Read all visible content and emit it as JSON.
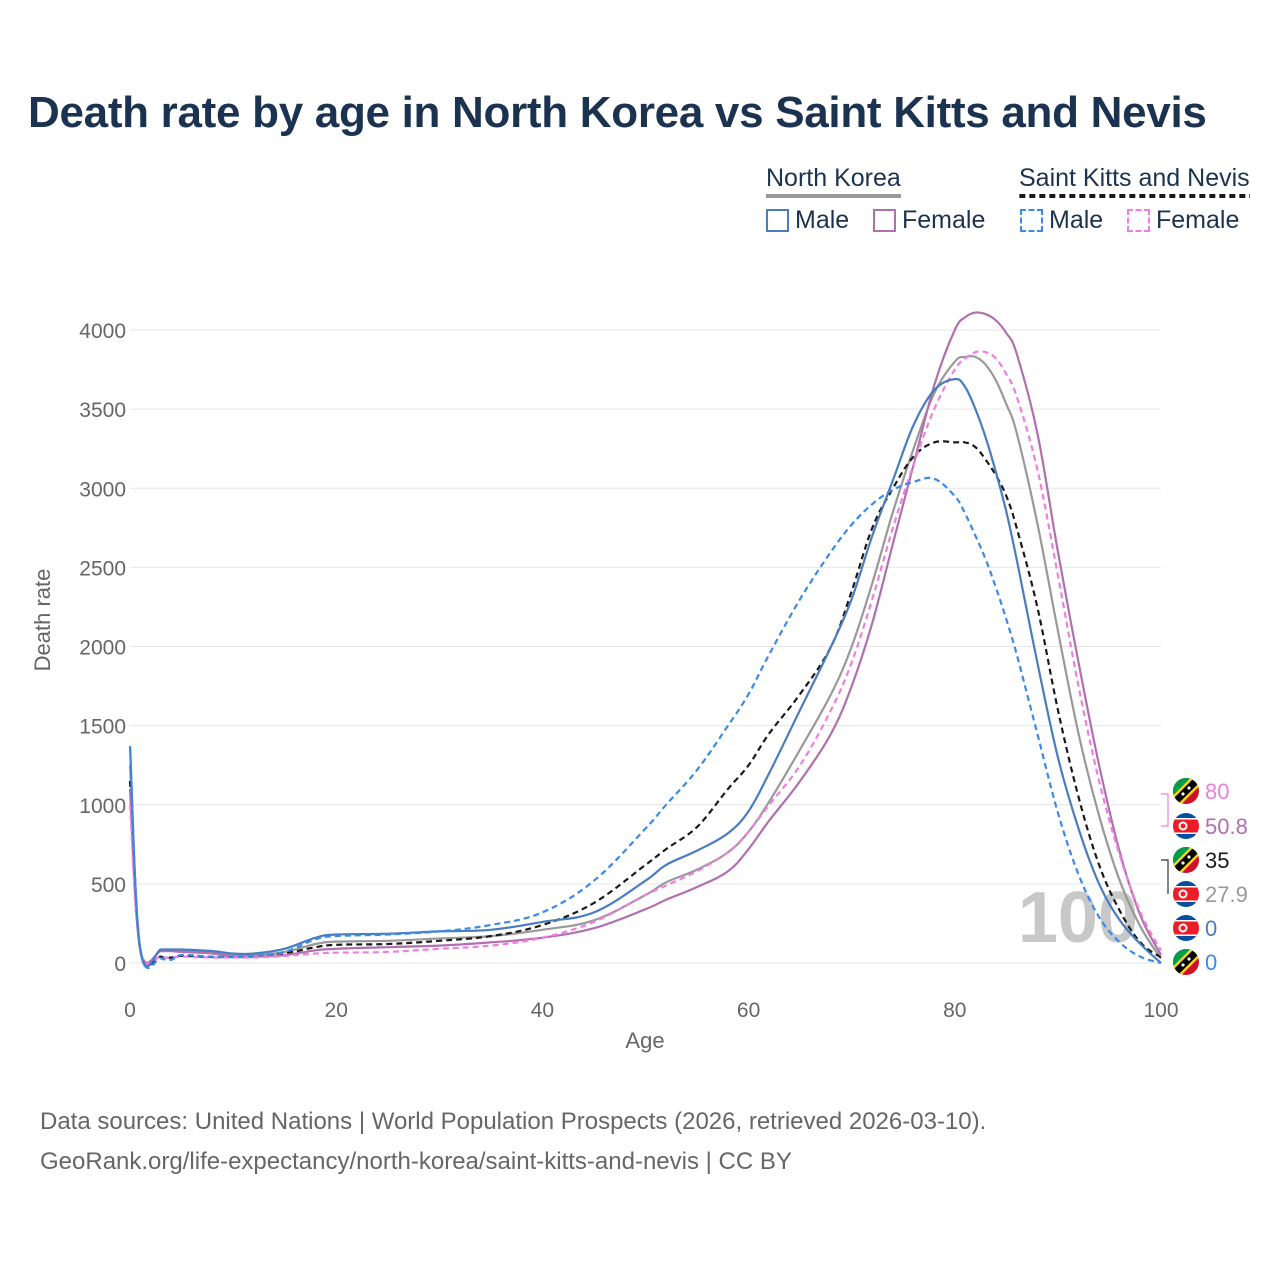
{
  "title": "Death rate by age in North Korea vs Saint Kitts and Nevis",
  "legend": {
    "group1": {
      "title": "North Korea",
      "male": "Male",
      "female": "Female"
    },
    "group2": {
      "title": "Saint Kitts and Nevis",
      "male": "Male",
      "female": "Female"
    }
  },
  "colors": {
    "nk_male": "#4a7cc0",
    "nk_female": "#b070b0",
    "nk_total": "#999999",
    "kn_male": "#3b8be6",
    "kn_female": "#f07ee0",
    "kn_total": "#1a1a1a",
    "title": "#1b3350",
    "grid": "#e6e6e6"
  },
  "watermark": "100",
  "end_labels": [
    {
      "flag": "saint-kitts-and-nevis",
      "value": "80",
      "color": "#f07ee0"
    },
    {
      "flag": "north-korea",
      "value": "50.8",
      "color": "#b070b0"
    },
    {
      "flag": "saint-kitts-and-nevis",
      "value": "35",
      "color": "#1a1a1a"
    },
    {
      "flag": "north-korea",
      "value": "27.9",
      "color": "#999999"
    },
    {
      "flag": "north-korea",
      "value": "0",
      "color": "#4a7cc0"
    },
    {
      "flag": "saint-kitts-and-nevis",
      "value": "0",
      "color": "#3b8be6"
    }
  ],
  "footer": {
    "line1": "Data sources: United Nations | World Population Prospects (2026, retrieved 2026-03-10).",
    "line2": "GeoRank.org/life-expectancy/north-korea/saint-kitts-and-nevis | CC BY"
  },
  "chart_data": {
    "type": "line",
    "title": "Death rate by age in North Korea vs Saint Kitts and Nevis",
    "xlabel": "Age",
    "ylabel": "Death rate",
    "xlim": [
      0,
      100
    ],
    "ylim": [
      0,
      4000
    ],
    "xticks": [
      0,
      20,
      40,
      60,
      80,
      100
    ],
    "yticks": [
      0,
      500,
      1000,
      1500,
      2000,
      2500,
      3000,
      3500,
      4000
    ],
    "grid": true,
    "legend_position": "top-right",
    "x": [
      0,
      1,
      3,
      4,
      5,
      8,
      10,
      12,
      15,
      18,
      20,
      25,
      30,
      35,
      40,
      45,
      50,
      52,
      55,
      58,
      60,
      62,
      65,
      68,
      70,
      72,
      74,
      76,
      78,
      80,
      81,
      82,
      83,
      84,
      85,
      86,
      88,
      90,
      92,
      94,
      96,
      98,
      100
    ],
    "series": [
      {
        "name": "North Korea Male",
        "country": "North Korea",
        "sex": "Male",
        "style": "solid",
        "values": [
          1370,
          80,
          85,
          85,
          85,
          75,
          60,
          60,
          90,
          160,
          180,
          185,
          200,
          210,
          260,
          320,
          520,
          620,
          710,
          820,
          960,
          1200,
          1600,
          2000,
          2300,
          2700,
          3050,
          3400,
          3620,
          3690,
          3640,
          3500,
          3320,
          3100,
          2850,
          2550,
          1900,
          1300,
          850,
          500,
          270,
          120,
          0
        ]
      },
      {
        "name": "North Korea Female",
        "country": "North Korea",
        "sex": "Female",
        "style": "solid",
        "values": [
          1100,
          85,
          75,
          75,
          70,
          60,
          40,
          40,
          50,
          80,
          90,
          100,
          110,
          130,
          160,
          220,
          340,
          400,
          480,
          580,
          720,
          900,
          1150,
          1450,
          1750,
          2150,
          2650,
          3150,
          3650,
          4000,
          4080,
          4110,
          4100,
          4060,
          3980,
          3850,
          3350,
          2600,
          1900,
          1250,
          700,
          300,
          50.8
        ]
      },
      {
        "name": "North Korea Total",
        "country": "North Korea",
        "sex": "Total",
        "style": "solid",
        "values": [
          1250,
          85,
          80,
          80,
          78,
          68,
          50,
          50,
          70,
          120,
          135,
          140,
          155,
          170,
          210,
          270,
          430,
          510,
          590,
          700,
          830,
          1020,
          1350,
          1700,
          2000,
          2400,
          2850,
          3250,
          3600,
          3800,
          3830,
          3830,
          3780,
          3680,
          3530,
          3350,
          2780,
          2100,
          1450,
          930,
          520,
          230,
          27.9
        ]
      },
      {
        "name": "Saint Kitts and Nevis Male",
        "country": "Saint Kitts and Nevis",
        "sex": "Male",
        "style": "dashed",
        "values": [
          1370,
          90,
          30,
          20,
          50,
          40,
          40,
          45,
          70,
          150,
          170,
          180,
          200,
          240,
          320,
          520,
          850,
          1000,
          1220,
          1500,
          1700,
          1950,
          2300,
          2600,
          2770,
          2900,
          2990,
          3040,
          3060,
          2950,
          2840,
          2700,
          2550,
          2370,
          2170,
          1950,
          1450,
          950,
          560,
          290,
          130,
          40,
          0
        ]
      },
      {
        "name": "Saint Kitts and Nevis Female",
        "country": "Saint Kitts and Nevis",
        "sex": "Female",
        "style": "dashed",
        "values": [
          1000,
          80,
          40,
          35,
          40,
          35,
          35,
          35,
          45,
          60,
          65,
          70,
          90,
          110,
          160,
          260,
          430,
          490,
          580,
          700,
          830,
          1000,
          1250,
          1600,
          1900,
          2300,
          2750,
          3150,
          3500,
          3750,
          3820,
          3860,
          3860,
          3820,
          3720,
          3580,
          3120,
          2450,
          1750,
          1150,
          680,
          320,
          80
        ]
      },
      {
        "name": "Saint Kitts and Nevis Total",
        "country": "Saint Kitts and Nevis",
        "sex": "Total",
        "style": "dashed",
        "values": [
          1150,
          85,
          40,
          35,
          45,
          38,
          38,
          40,
          60,
          100,
          115,
          120,
          140,
          170,
          240,
          380,
          620,
          720,
          860,
          1100,
          1250,
          1450,
          1700,
          2000,
          2350,
          2750,
          3000,
          3200,
          3290,
          3290,
          3290,
          3260,
          3180,
          3080,
          2950,
          2750,
          2250,
          1600,
          1050,
          620,
          330,
          130,
          35
        ]
      }
    ]
  }
}
